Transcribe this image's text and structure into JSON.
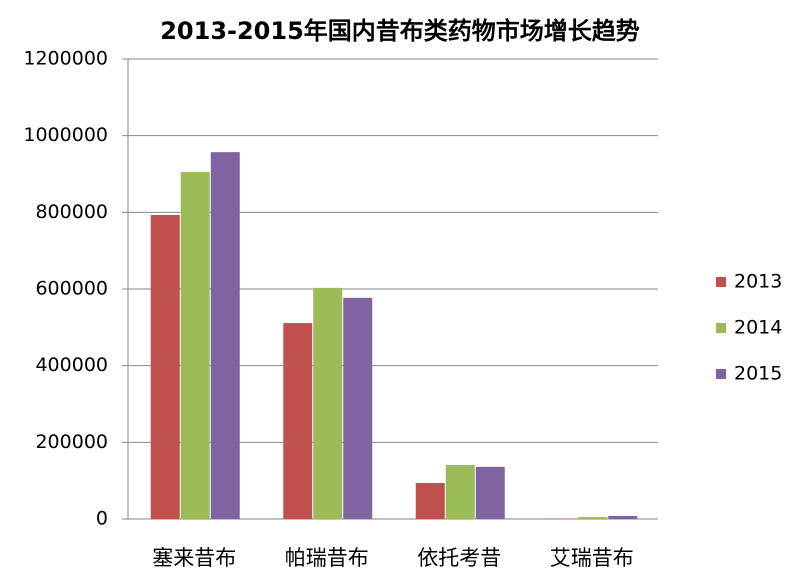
{
  "chart_data": {
    "type": "bar",
    "title": "2013-2015年国内昔布类药物市场增长趋势",
    "categories": [
      "塞来昔布",
      "帕瑞昔布",
      "依托考昔",
      "艾瑞昔布"
    ],
    "series": [
      {
        "name": "2013",
        "color": "#c0504d",
        "values": [
          793000,
          511000,
          94000,
          1000
        ]
      },
      {
        "name": "2014",
        "color": "#9bbb59",
        "values": [
          905000,
          603000,
          141000,
          5000
        ]
      },
      {
        "name": "2015",
        "color": "#8064a2",
        "values": [
          957000,
          577000,
          136000,
          8000
        ]
      }
    ],
    "ylim": [
      0,
      1200000
    ],
    "yticks": [
      0,
      200000,
      400000,
      600000,
      800000,
      1000000,
      1200000
    ],
    "grid": true,
    "legend": "right"
  }
}
